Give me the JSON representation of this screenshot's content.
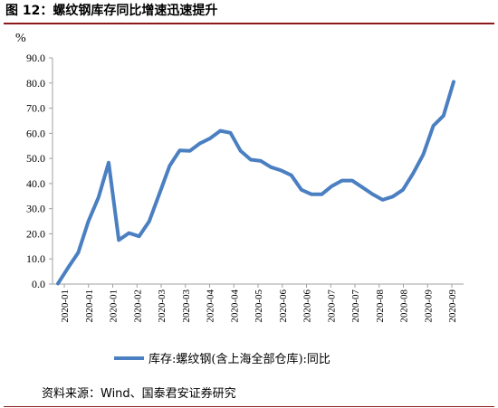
{
  "header": {
    "title": "图 12：螺纹钢库存同比增速迅速提升"
  },
  "footer": {
    "source": "资料来源：Wind、国泰君安证券研究"
  },
  "chart_data": {
    "type": "line",
    "unit_label": "%",
    "ylim": [
      0,
      90
    ],
    "yticks": [
      "0.0",
      "10.0",
      "20.0",
      "30.0",
      "40.0",
      "50.0",
      "60.0",
      "70.0",
      "80.0",
      "90.0"
    ],
    "xtick_labels": [
      "2020-01",
      "2020-01",
      "2020-01",
      "2020-02",
      "2020-03",
      "2020-03",
      "2020-04",
      "2020-04",
      "2020-05",
      "2020-06",
      "2020-06",
      "2020-07",
      "2020-07",
      "2020-08",
      "2020-08",
      "2020-09",
      "2020-09"
    ],
    "grid": false,
    "legend_position": "bottom",
    "color": "#4a7fc1",
    "series": [
      {
        "name": "库存:螺纹钢(含上海全部仓库):同比",
        "values": [
          0.2,
          6.5,
          12.5,
          25,
          34.5,
          48.3,
          17.5,
          20.3,
          19,
          25,
          36,
          47,
          53.2,
          53,
          56,
          58,
          61,
          60.2,
          53,
          49.5,
          49,
          46.5,
          45.2,
          43.3,
          37.5,
          35.7,
          35.7,
          39,
          41.2,
          41.2,
          38.5,
          35.8,
          33.5,
          34.8,
          37.5,
          44,
          51.5,
          63,
          67,
          80.5
        ]
      }
    ]
  }
}
